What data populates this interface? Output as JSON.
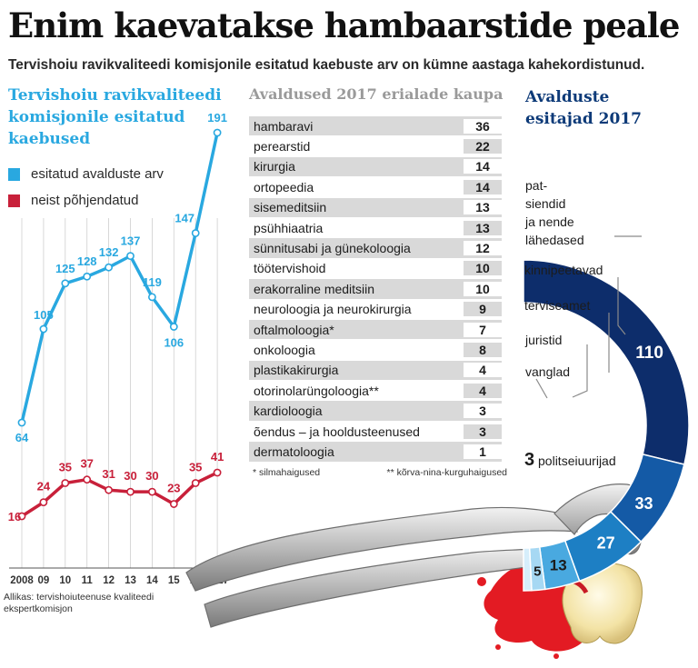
{
  "headline": "Enim kaevatakse hambaarstide peale",
  "subtitle": "Tervishoiu ravikvaliteedi komisjonile esitatud kaebuste arv on kümne aastaga kahekordistunud.",
  "chart_data": [
    {
      "type": "line",
      "title": "Tervishoiu ravikvaliteedi komisjonile esitatud kaebused",
      "x": [
        "2008",
        "09",
        "10",
        "11",
        "12",
        "13",
        "14",
        "15",
        "16",
        "2017"
      ],
      "series": [
        {
          "name": "esitatud avalduste arv",
          "color": "#29a8e0",
          "values": [
            64,
            105,
            125,
            128,
            132,
            137,
            119,
            106,
            147,
            191
          ]
        },
        {
          "name": "neist põhjendatud",
          "color": "#c8203a",
          "values": [
            16,
            24,
            35,
            37,
            31,
            30,
            30,
            23,
            35,
            41
          ]
        }
      ],
      "xlabel": "",
      "ylabel": ""
    },
    {
      "type": "table",
      "title": "Avaldused 2017 erialade kaupa",
      "rows": [
        {
          "name": "hambaravi",
          "value": "36"
        },
        {
          "name": "perearstid",
          "value": "22"
        },
        {
          "name": "kirurgia",
          "value": "14"
        },
        {
          "name": "ortopeedia",
          "value": "14"
        },
        {
          "name": "sisemeditsiin",
          "value": "13"
        },
        {
          "name": "psühhiaatria",
          "value": "13"
        },
        {
          "name": "sünnitusabi ja günekoloogia",
          "value": "12"
        },
        {
          "name": " töötervishoid",
          "value": "10"
        },
        {
          "name": "erakorraline meditsiin",
          "value": "10"
        },
        {
          "name": "neuroloogia ja neurokirurgia",
          "value": "9"
        },
        {
          "name": "oftalmoloogia*",
          "value": "7"
        },
        {
          "name": "onkoloogia",
          "value": "8"
        },
        {
          "name": "plastikakirurgia",
          "value": "4"
        },
        {
          "name": "otorinolarüngoloogia**",
          "value": "4"
        },
        {
          "name": "kardioloogia",
          "value": "3"
        },
        {
          "name": "õendus – ja hooldusteenused",
          "value": "3"
        },
        {
          "name": "dermatoloogia",
          "value": "1"
        }
      ],
      "footnote_1": "* silmahaigused",
      "footnote_2": "** kõrva-nina-kurguhaigused"
    },
    {
      "type": "pie",
      "title": "Avalduste esitajad 2017",
      "slices": [
        {
          "name": "patsiendid ja nende lähedased",
          "value": 110,
          "color": "#0d2d6b"
        },
        {
          "name": "kinnipeetavad",
          "value": 33,
          "color": "#145aa6"
        },
        {
          "name": "terviseamet",
          "value": 27,
          "color": "#1d7fc4"
        },
        {
          "name": "juristid",
          "value": 13,
          "color": "#49a9e0"
        },
        {
          "name": "vanglad",
          "value": 5,
          "color": "#a6d8f3"
        },
        {
          "name": "politseiuurijad",
          "value": 3,
          "color": "#d6eefb"
        }
      ]
    }
  ],
  "left_title_l1": "Tervishoiu ravikvaliteedi",
  "left_title_l2": "komisjonile esitatud",
  "left_title_l3": "kaebused",
  "right_title_l1": "Avalduste",
  "right_title_l2": "esitajad 2017",
  "donut_labels": {
    "patients_l1": "pat-",
    "patients_l2": "siendid",
    "patients_l3": "ja nende",
    "patients_l4": "lähedased",
    "police_num": "3",
    "police_text": "politseiuurijad"
  },
  "source_l1": "Allikas: tervishoiuteenuse kvaliteedi",
  "source_l2": "ekspertkomisjon"
}
